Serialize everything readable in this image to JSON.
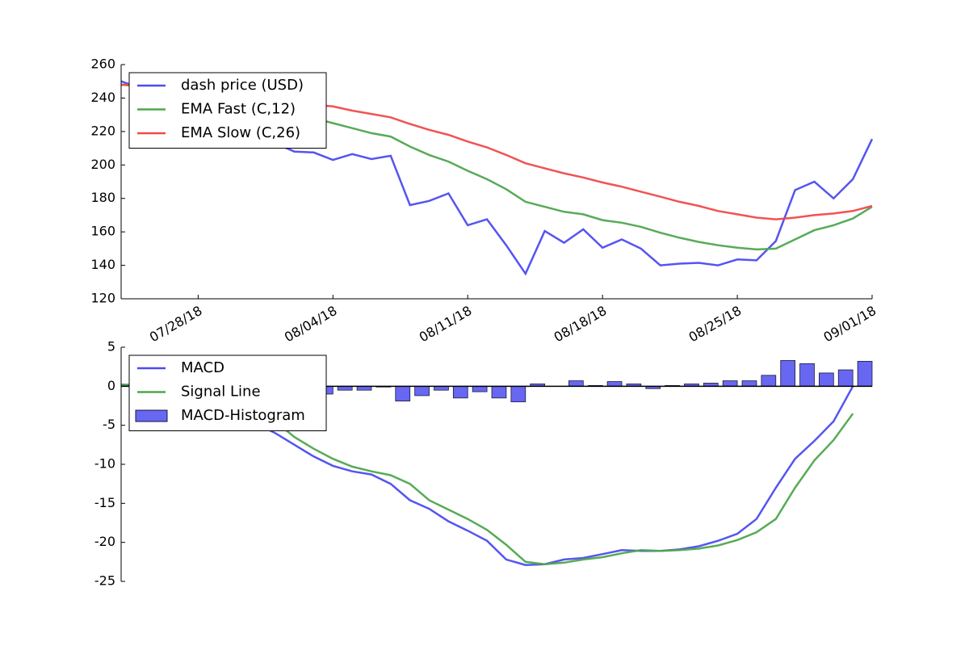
{
  "chart_data": [
    {
      "type": "line",
      "x": [
        "07/24/18",
        "07/25/18",
        "07/26/18",
        "07/27/18",
        "07/28/18",
        "07/29/18",
        "07/30/18",
        "07/31/18",
        "08/01/18",
        "08/02/18",
        "08/03/18",
        "08/04/18",
        "08/05/18",
        "08/06/18",
        "08/07/18",
        "08/08/18",
        "08/09/18",
        "08/10/18",
        "08/11/18",
        "08/12/18",
        "08/13/18",
        "08/14/18",
        "08/15/18",
        "08/16/18",
        "08/17/18",
        "08/18/18",
        "08/19/18",
        "08/20/18",
        "08/21/18",
        "08/22/18",
        "08/23/18",
        "08/24/18",
        "08/25/18",
        "08/26/18",
        "08/27/18",
        "08/28/18",
        "08/29/18",
        "08/30/18",
        "08/31/18",
        "09/01/18"
      ],
      "series": [
        {
          "name": "dash price (USD)",
          "color": "#4c4cf0",
          "values": [
            250,
            246,
            243,
            240,
            236,
            232,
            228,
            222,
            213,
            208,
            207.5,
            203,
            206.5,
            203.5,
            205.5,
            176,
            178.5,
            183,
            164,
            167.5,
            152,
            135,
            160.5,
            153.5,
            161.5,
            150.5,
            155.5,
            150,
            140,
            141,
            141.5,
            140,
            143.5,
            143,
            154.5,
            185,
            190,
            180,
            191.5,
            215.5
          ]
        },
        {
          "name": "EMA Fast (C,12)",
          "color": "#4ea64e",
          "values": [
            248,
            247,
            246,
            245,
            243,
            241,
            238,
            235,
            232,
            230,
            228,
            225,
            222,
            219,
            217,
            211,
            206,
            202,
            196.5,
            191.5,
            185.5,
            178,
            175,
            172,
            170.5,
            167,
            165.5,
            163,
            159.5,
            156.5,
            154,
            152,
            150.5,
            149.5,
            150,
            155.5,
            161,
            164,
            168,
            175
          ]
        },
        {
          "name": "EMA Slow (C,26)",
          "color": "#f04a4a",
          "values": [
            248,
            247.5,
            247,
            246,
            245,
            244,
            242.5,
            241,
            239.5,
            237.5,
            236,
            235,
            232.5,
            230.5,
            228.5,
            224.5,
            221,
            218,
            214,
            210.5,
            206,
            201,
            198,
            195,
            192.5,
            189.5,
            187,
            184,
            181,
            178,
            175.5,
            172.5,
            170.5,
            168.5,
            167.5,
            168.5,
            170,
            171,
            172.5,
            175.5
          ]
        }
      ],
      "xlim": [
        "07/24/18",
        "09/01/18"
      ],
      "xticks": [
        "07/28/18",
        "08/04/18",
        "08/11/18",
        "08/18/18",
        "08/25/18",
        "09/01/18"
      ],
      "ylim": [
        120,
        260
      ],
      "yticks": [
        120,
        140,
        160,
        180,
        200,
        220,
        240,
        260
      ],
      "legend": "upper left"
    },
    {
      "type": "combo",
      "x": [
        "07/24/18",
        "07/25/18",
        "07/26/18",
        "07/27/18",
        "07/28/18",
        "07/29/18",
        "07/30/18",
        "07/31/18",
        "08/01/18",
        "08/02/18",
        "08/03/18",
        "08/04/18",
        "08/05/18",
        "08/06/18",
        "08/07/18",
        "08/08/18",
        "08/09/18",
        "08/10/18",
        "08/11/18",
        "08/12/18",
        "08/13/18",
        "08/14/18",
        "08/15/18",
        "08/16/18",
        "08/17/18",
        "08/18/18",
        "08/19/18",
        "08/20/18",
        "08/21/18",
        "08/22/18",
        "08/23/18",
        "08/24/18",
        "08/25/18",
        "08/26/18",
        "08/27/18",
        "08/28/18",
        "08/29/18",
        "08/30/18",
        "08/31/18"
      ],
      "series": [
        {
          "name": "MACD",
          "kind": "line",
          "color": "#4c4cf0",
          "values": [
            0.2,
            0,
            -0.5,
            -1.2,
            -2,
            -3,
            -3.8,
            -4.8,
            -6,
            -7.5,
            -9,
            -10.2,
            -10.9,
            -11.3,
            -12.5,
            -14.6,
            -15.7,
            -17.3,
            -18.5,
            -19.8,
            -22.2,
            -22.9,
            -22.8,
            -22.2,
            -22,
            -21.5,
            -21,
            -21.1,
            -21.1,
            -20.9,
            -20.5,
            -19.8,
            -18.9,
            -17,
            -13,
            -9.3,
            -7,
            -4.5,
            0
          ]
        },
        {
          "name": "Signal Line",
          "kind": "line",
          "color": "#4ea64e",
          "values": [
            0.2,
            0.2,
            0.1,
            -0.2,
            -0.6,
            -1.3,
            -2,
            -3,
            -4.5,
            -6.5,
            -8,
            -9.3,
            -10.3,
            -10.9,
            -11.4,
            -12.5,
            -14.6,
            -15.8,
            -17,
            -18.4,
            -20.3,
            -22.5,
            -22.8,
            -22.6,
            -22.2,
            -21.9,
            -21.4,
            -21,
            -21.1,
            -21,
            -20.8,
            -20.4,
            -19.7,
            -18.7,
            -17,
            -13,
            -9.5,
            -6.9,
            -3.5
          ]
        },
        {
          "name": "MACD-Histogram",
          "kind": "bar",
          "color": "#4c4cf0",
          "values": [
            0.1,
            0,
            -0.2,
            -0.4,
            -0.6,
            -0.8,
            -0.9,
            -1,
            -1.2,
            -1.1,
            -1,
            -0.5,
            -0.5,
            -0.1,
            -1.9,
            -1.2,
            -0.5,
            -1.5,
            -0.7,
            -1.5,
            -2,
            0.3,
            0,
            0.7,
            0.1,
            0.6,
            0.3,
            -0.3,
            0.1,
            0.3,
            0.4,
            0.7,
            0.7,
            1.4,
            3.3,
            2.9,
            1.7,
            2.1,
            3.2
          ]
        }
      ],
      "xlim": [
        "07/24/18",
        "09/01/18"
      ],
      "ylim": [
        -25,
        5
      ],
      "yticks": [
        -25,
        -20,
        -15,
        -10,
        -5,
        0,
        5
      ],
      "legend": "upper left"
    }
  ]
}
